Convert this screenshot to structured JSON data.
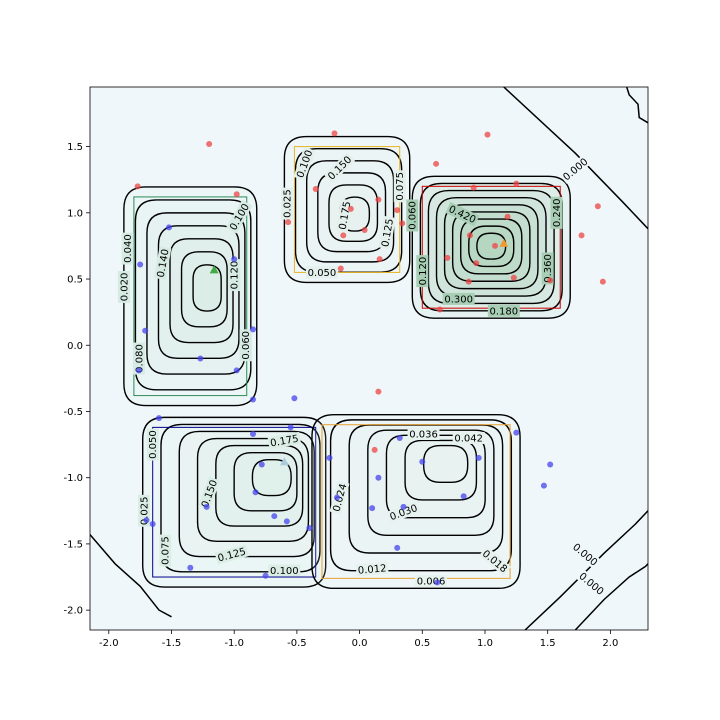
{
  "chart_data": {
    "type": "contour",
    "title": "",
    "xlabel": "",
    "ylabel": "",
    "xlim": [
      -2.15,
      2.3
    ],
    "ylim": [
      -2.15,
      1.95
    ],
    "grid": false,
    "legend": "none",
    "xticks": [
      "-2.0",
      "-1.5",
      "-1.0",
      "-0.5",
      "0.0",
      "0.5",
      "1.0",
      "1.5",
      "2.0"
    ],
    "xtick_values": [
      -2.0,
      -1.5,
      -1.0,
      -0.5,
      0.0,
      0.5,
      1.0,
      1.5,
      2.0
    ],
    "yticks": [
      "-2.0",
      "-1.5",
      "-1.0",
      "-0.5",
      "0.0",
      "0.5",
      "1.0",
      "1.5"
    ],
    "ytick_values": [
      -2.0,
      -1.5,
      -1.0,
      -0.5,
      0.0,
      0.5,
      1.0,
      1.5
    ],
    "colors": {
      "background": "#f0f7fa",
      "contour_line": "#000000",
      "red_points": "#ee4444",
      "blue_points": "#4444ee",
      "green_box": "#2e8b57",
      "yellow_box": "#e6b422",
      "red_box": "#cc0000",
      "blue_box": "#000088",
      "orange_box": "#e8a030"
    },
    "regions": [
      {
        "name": "top-left",
        "x_range": [
          -1.8,
          -0.9
        ],
        "y_range": [
          -0.38,
          1.12
        ],
        "box_color": "#2e8b57",
        "fill": "#d6ebe3",
        "levels": 7,
        "center": [
          -1.18,
          0.45
        ],
        "contour_labels": [
          {
            "text": "0.020",
            "x": -1.88,
            "y": 0.44,
            "rot": -90
          },
          {
            "text": "0.040",
            "x": -1.85,
            "y": 0.73,
            "rot": -90
          },
          {
            "text": "0.140",
            "x": -1.57,
            "y": 0.62,
            "rot": -80
          },
          {
            "text": "0.100",
            "x": -0.96,
            "y": 0.97,
            "rot": -60
          },
          {
            "text": "0.120",
            "x": -1.0,
            "y": 0.53,
            "rot": -90
          },
          {
            "text": "0.060",
            "x": -0.91,
            "y": 0.0,
            "rot": -90
          },
          {
            "text": "0.080",
            "x": -1.76,
            "y": -0.1,
            "rot": -90
          }
        ],
        "marker": {
          "shape": "triangle",
          "color": "#44aa44",
          "x": -1.16,
          "y": 0.57
        }
      },
      {
        "name": "top-middle",
        "x_range": [
          -0.52,
          0.32
        ],
        "y_range": [
          0.55,
          1.5
        ],
        "box_color": "#e6b422",
        "fill": "#e3f0ec",
        "levels": 6,
        "center": [
          -0.02,
          0.98
        ],
        "contour_labels": [
          {
            "text": "0.150",
            "x": -0.16,
            "y": 1.34,
            "rot": -45
          },
          {
            "text": "0.100",
            "x": -0.44,
            "y": 1.37,
            "rot": -70
          },
          {
            "text": "0.025",
            "x": -0.58,
            "y": 1.07,
            "rot": -90
          },
          {
            "text": "0.175",
            "x": -0.12,
            "y": 0.98,
            "rot": -80
          },
          {
            "text": "0.125",
            "x": 0.22,
            "y": 0.85,
            "rot": -80
          },
          {
            "text": "0.075",
            "x": 0.32,
            "y": 1.2,
            "rot": -90
          },
          {
            "text": "0.050",
            "x": -0.3,
            "y": 0.55,
            "rot": 0
          }
        ]
      },
      {
        "name": "top-right",
        "x_range": [
          0.5,
          1.6
        ],
        "y_range": [
          0.28,
          1.2
        ],
        "box_color": "#cc0000",
        "fill": "#a8cfb5",
        "levels": 9,
        "center": [
          1.05,
          0.75
        ],
        "contour_labels": [
          {
            "text": "0.420",
            "x": 0.82,
            "y": 0.99,
            "rot": 25
          },
          {
            "text": "0.060",
            "x": 0.42,
            "y": 0.98,
            "rot": -90
          },
          {
            "text": "0.120",
            "x": 0.5,
            "y": 0.56,
            "rot": -90
          },
          {
            "text": "0.300",
            "x": 0.79,
            "y": 0.35,
            "rot": 0
          },
          {
            "text": "0.180",
            "x": 1.15,
            "y": 0.26,
            "rot": 0
          },
          {
            "text": "0.360",
            "x": 1.5,
            "y": 0.58,
            "rot": -90
          },
          {
            "text": "0.240",
            "x": 1.57,
            "y": 1.0,
            "rot": -90
          }
        ],
        "marker": {
          "shape": "triangle",
          "color": "#ee9933",
          "x": 1.15,
          "y": 0.77
        }
      },
      {
        "name": "bottom-left",
        "x_range": [
          -1.65,
          -0.35
        ],
        "y_range": [
          -1.75,
          -0.62
        ],
        "box_color": "#000088",
        "fill": "#dbeee6",
        "levels": 7,
        "center": [
          -0.62,
          -0.95
        ],
        "contour_labels": [
          {
            "text": "0.175",
            "x": -0.6,
            "y": -0.72,
            "rot": -10
          },
          {
            "text": "0.050",
            "x": -1.65,
            "y": -0.75,
            "rot": -90
          },
          {
            "text": "0.150",
            "x": -1.2,
            "y": -1.12,
            "rot": -70
          },
          {
            "text": "0.025",
            "x": -1.72,
            "y": -1.25,
            "rot": -90
          },
          {
            "text": "0.075",
            "x": -1.55,
            "y": -1.55,
            "rot": -90
          },
          {
            "text": "0.125",
            "x": -1.02,
            "y": -1.58,
            "rot": -15
          },
          {
            "text": "0.100",
            "x": -0.6,
            "y": -1.7,
            "rot": 0
          }
        ],
        "marker": {
          "shape": "triangle",
          "color": "#aaccdd",
          "x": -0.6,
          "y": -0.88
        }
      },
      {
        "name": "bottom-right",
        "x_range": [
          -0.3,
          1.2
        ],
        "y_range": [
          -1.76,
          -0.6
        ],
        "box_color": "#e8a030",
        "fill": "#e6f2ee",
        "levels": 7,
        "center": [
          0.75,
          -0.82
        ],
        "contour_labels": [
          {
            "text": "0.036",
            "x": 0.51,
            "y": -0.67,
            "rot": 0
          },
          {
            "text": "0.042",
            "x": 0.87,
            "y": -0.7,
            "rot": 0
          },
          {
            "text": "0.024",
            "x": -0.16,
            "y": -1.15,
            "rot": -75
          },
          {
            "text": "0.030",
            "x": 0.35,
            "y": -1.26,
            "rot": -20
          },
          {
            "text": "0.012",
            "x": 0.1,
            "y": -1.69,
            "rot": -5
          },
          {
            "text": "0.018",
            "x": 1.08,
            "y": -1.63,
            "rot": 40
          },
          {
            "text": "0.006",
            "x": 0.57,
            "y": -1.78,
            "rot": 0
          }
        ]
      }
    ],
    "background_contours": [
      {
        "label": "0.000",
        "label_x": 1.72,
        "label_y": 1.33,
        "label_rot": -40
      },
      {
        "label": "0.000",
        "label_x": 1.8,
        "label_y": -1.58,
        "label_rot": 40
      },
      {
        "label": "0.000",
        "label_x": 1.85,
        "label_y": -1.8,
        "label_rot": 40
      }
    ],
    "red_points": [
      [
        -1.2,
        1.52
      ],
      [
        -1.77,
        1.2
      ],
      [
        -0.98,
        1.14
      ],
      [
        -0.2,
        1.6
      ],
      [
        -0.35,
        1.18
      ],
      [
        -0.57,
        0.93
      ],
      [
        -0.07,
        1.03
      ],
      [
        -0.13,
        0.83
      ],
      [
        0.04,
        0.87
      ],
      [
        0.15,
        1.1
      ],
      [
        0.16,
        0.65
      ],
      [
        0.3,
        1.02
      ],
      [
        0.34,
        0.92
      ],
      [
        -0.15,
        0.58
      ],
      [
        0.61,
        1.37
      ],
      [
        1.02,
        1.59
      ],
      [
        0.91,
        1.19
      ],
      [
        1.25,
        1.22
      ],
      [
        1.18,
        0.97
      ],
      [
        0.88,
        0.83
      ],
      [
        0.7,
        0.66
      ],
      [
        0.93,
        0.62
      ],
      [
        0.87,
        0.48
      ],
      [
        1.08,
        0.75
      ],
      [
        1.23,
        0.51
      ],
      [
        1.52,
        0.49
      ],
      [
        0.64,
        0.27
      ],
      [
        1.9,
        1.05
      ],
      [
        1.77,
        0.83
      ],
      [
        1.94,
        0.48
      ],
      [
        0.15,
        -0.35
      ],
      [
        0.12,
        -0.79
      ]
    ],
    "blue_points": [
      [
        -1.52,
        0.89
      ],
      [
        -1.75,
        0.61
      ],
      [
        -1.71,
        0.11
      ],
      [
        -1.76,
        -0.19
      ],
      [
        -1.27,
        -0.1
      ],
      [
        -1.0,
        0.65
      ],
      [
        -0.85,
        0.12
      ],
      [
        -0.98,
        -0.19
      ],
      [
        -0.85,
        -0.41
      ],
      [
        -0.52,
        -0.4
      ],
      [
        -1.6,
        -0.55
      ],
      [
        -0.85,
        -0.67
      ],
      [
        -0.78,
        -0.9
      ],
      [
        -0.83,
        -1.11
      ],
      [
        -0.55,
        -0.62
      ],
      [
        -1.22,
        -1.22
      ],
      [
        -0.68,
        -1.29
      ],
      [
        -0.58,
        -1.33
      ],
      [
        -1.7,
        -1.32
      ],
      [
        -1.65,
        -1.35
      ],
      [
        -1.35,
        -1.68
      ],
      [
        -0.75,
        -1.74
      ],
      [
        -0.4,
        -1.38
      ],
      [
        -0.24,
        -0.85
      ],
      [
        -0.18,
        -1.15
      ],
      [
        0.15,
        -1.0
      ],
      [
        0.32,
        -0.7
      ],
      [
        0.5,
        -0.88
      ],
      [
        0.35,
        -1.22
      ],
      [
        0.1,
        -1.23
      ],
      [
        0.3,
        -1.53
      ],
      [
        0.83,
        -1.14
      ],
      [
        0.95,
        -0.85
      ],
      [
        0.62,
        -1.79
      ],
      [
        1.25,
        -0.66
      ],
      [
        1.52,
        -0.9
      ],
      [
        1.47,
        -1.06
      ]
    ],
    "background_line_paths": [
      [
        [
          1.15,
          1.95
        ],
        [
          1.72,
          1.45
        ],
        [
          2.1,
          1.08
        ],
        [
          2.3,
          0.88
        ]
      ],
      [
        [
          2.13,
          1.95
        ],
        [
          2.15,
          1.89
        ],
        [
          2.22,
          1.82
        ],
        [
          2.23,
          1.72
        ],
        [
          2.3,
          1.68
        ]
      ],
      [
        [
          -2.15,
          -1.43
        ],
        [
          -1.95,
          -1.65
        ],
        [
          -1.75,
          -1.82
        ],
        [
          -1.6,
          -2.0
        ],
        [
          -1.5,
          -2.05
        ]
      ],
      [
        [
          1.32,
          -2.15
        ],
        [
          1.6,
          -1.9
        ],
        [
          1.95,
          -1.57
        ],
        [
          2.2,
          -1.35
        ],
        [
          2.3,
          -1.25
        ]
      ],
      [
        [
          1.72,
          -2.15
        ],
        [
          1.95,
          -1.92
        ],
        [
          2.15,
          -1.75
        ],
        [
          2.28,
          -1.67
        ],
        [
          2.3,
          -1.65
        ]
      ]
    ]
  }
}
